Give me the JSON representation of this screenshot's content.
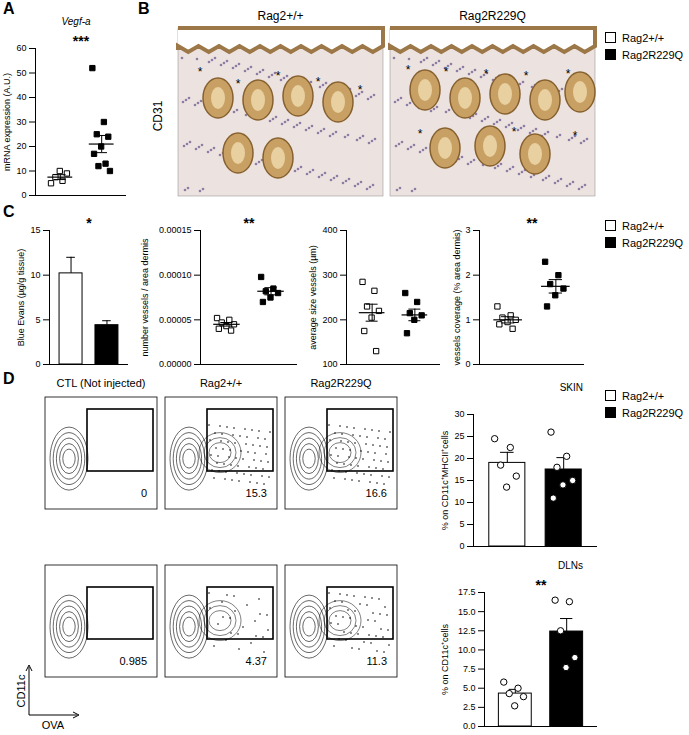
{
  "panels": [
    "A",
    "B",
    "C",
    "D"
  ],
  "histology": {
    "stain": "CD31",
    "columns": [
      "Rag2+/+",
      "Rag2R229Q"
    ],
    "marker": "*"
  },
  "flow": {
    "columns": [
      "CTL (Not injected)",
      "Rag2+/+",
      "Rag2R229Q"
    ],
    "rows": [
      {
        "gates": [
          0,
          15.3,
          16.6
        ]
      },
      {
        "gates": [
          0.985,
          4.37,
          11.3
        ]
      }
    ],
    "x_label": "OVA",
    "y_label": "CD11c"
  },
  "chart_data": [
    {
      "type": "dot",
      "title": "Vegf-a",
      "y_label": "mRNA expression (A.U.)",
      "ylim": [
        0,
        60
      ],
      "yticks": [
        0,
        10,
        20,
        30,
        40,
        50,
        60
      ],
      "tick_labels": "y",
      "annotation": "***",
      "legend": "right",
      "series": [
        {
          "name": "Rag2+/+",
          "color": "#ffffff",
          "marker": "square",
          "values": [
            5,
            6,
            7.5,
            9,
            10
          ],
          "mean": 7.5,
          "sem": 1.0
        },
        {
          "name": "Rag2R229Q",
          "color": "#000000",
          "marker": "square",
          "values": [
            52,
            30,
            25,
            24,
            20,
            17,
            13,
            12,
            10
          ],
          "mean": 21,
          "sem": 3.5
        }
      ]
    },
    {
      "type": "bar",
      "y_label": "Blue Evans (µg/g tissue)",
      "ylim": [
        0,
        15
      ],
      "yticks": [
        0,
        5,
        10,
        15
      ],
      "tick_labels": "y",
      "annotation": "*",
      "series": [
        {
          "name": "Rag2+/+",
          "color": "#ffffff",
          "values": [
            10.2
          ],
          "error": [
            1.8
          ]
        },
        {
          "name": "Rag2R229Q",
          "color": "#000000",
          "values": [
            4.4
          ],
          "error": [
            0.5
          ]
        }
      ]
    },
    {
      "type": "dot",
      "y_label": "number vessels / area dermis",
      "ylim": [
        0,
        0.00015
      ],
      "yticks": [
        {
          "value": 0,
          "label": "0.00000"
        },
        {
          "value": 5e-05,
          "label": "0.00005"
        },
        {
          "value": 0.0001,
          "label": "0.00010"
        },
        {
          "value": 0.00015,
          "label": "0.00015"
        }
      ],
      "tick_labels": "y",
      "annotation": "**",
      "series": [
        {
          "name": "Rag2+/+",
          "color": "#ffffff",
          "marker": "square",
          "values": [
            5.2e-05,
            5e-05,
            4.7e-05,
            4.5e-05,
            4.3e-05,
            4e-05,
            3.8e-05
          ],
          "mean": 4.5e-05,
          "sem": 2e-06
        },
        {
          "name": "Rag2R229Q",
          "color": "#000000",
          "marker": "square",
          "values": [
            9.8e-05,
            8.5e-05,
            8.2e-05,
            8e-05,
            7.5e-05,
            7e-05
          ],
          "mean": 8.2e-05,
          "sem": 4e-06
        }
      ]
    },
    {
      "type": "dot",
      "y_label": "average size vessels (µm)",
      "ylim": [
        100,
        400
      ],
      "yticks": [
        100,
        200,
        300,
        400
      ],
      "tick_labels": "y",
      "series": [
        {
          "name": "Rag2+/+",
          "color": "#ffffff",
          "marker": "square",
          "values": [
            285,
            265,
            230,
            220,
            205,
            175,
            130
          ],
          "mean": 216,
          "sem": 19
        },
        {
          "name": "Rag2R229Q",
          "color": "#000000",
          "marker": "square",
          "values": [
            260,
            240,
            215,
            210,
            200,
            170
          ],
          "mean": 211,
          "sem": 13
        }
      ]
    },
    {
      "type": "dot",
      "y_label": "vessels coverage (% area dermis)",
      "ylim": [
        0,
        3
      ],
      "yticks": [
        0,
        1,
        2,
        3
      ],
      "tick_labels": "y",
      "annotation": "**",
      "legend": "right",
      "series": [
        {
          "name": "Rag2+/+",
          "color": "#ffffff",
          "marker": "square",
          "values": [
            1.3,
            1.1,
            1.05,
            1.0,
            0.95,
            0.9,
            0.8
          ],
          "mean": 1.0,
          "sem": 0.07
        },
        {
          "name": "Rag2R229Q",
          "color": "#000000",
          "marker": "square",
          "values": [
            2.3,
            2.0,
            1.8,
            1.7,
            1.55,
            1.3
          ],
          "mean": 1.75,
          "sem": 0.15
        }
      ]
    },
    {
      "type": "bar_dot",
      "title": "SKIN",
      "y_label": "% on CD11c⁺MHCII⁺cells",
      "ylim": [
        0,
        30
      ],
      "yticks": [
        0,
        5,
        10,
        15,
        20,
        25,
        30
      ],
      "tick_labels": "y",
      "legend": "right",
      "series": [
        {
          "name": "Rag2+/+",
          "color": "#ffffff",
          "marker": "circle",
          "values": [
            24.5,
            22.5,
            18.5,
            16,
            13.5
          ],
          "mean": 19,
          "sem": 2.4
        },
        {
          "name": "Rag2R229Q",
          "color": "#000000",
          "marker": "circle",
          "values": [
            26,
            20.5,
            18,
            15,
            14,
            11
          ],
          "mean": 17.5,
          "sem": 2.7
        }
      ]
    },
    {
      "type": "bar_dot",
      "title": "DLNs",
      "y_label": "% on CD11c⁺cells",
      "ylim": [
        0,
        17.5
      ],
      "yticks": [
        {
          "value": 0,
          "label": "0.0"
        },
        2.5,
        {
          "value": 5,
          "label": "5.0"
        },
        7.5,
        {
          "value": 10,
          "label": "10.0"
        },
        12.5,
        {
          "value": 15,
          "label": "15.0"
        },
        17.5
      ],
      "tick_labels": "y",
      "annotation": "**",
      "series": [
        {
          "name": "Rag2+/+",
          "color": "#ffffff",
          "marker": "circle",
          "values": [
            5.8,
            5.0,
            4.3,
            3.9,
            2.7
          ],
          "mean": 4.3,
          "sem": 0.55
        },
        {
          "name": "Rag2R229Q",
          "color": "#000000",
          "marker": "circle",
          "values": [
            16.5,
            16.3,
            12.5,
            9,
            7.7
          ],
          "mean": 12.4,
          "sem": 1.7
        }
      ]
    }
  ]
}
